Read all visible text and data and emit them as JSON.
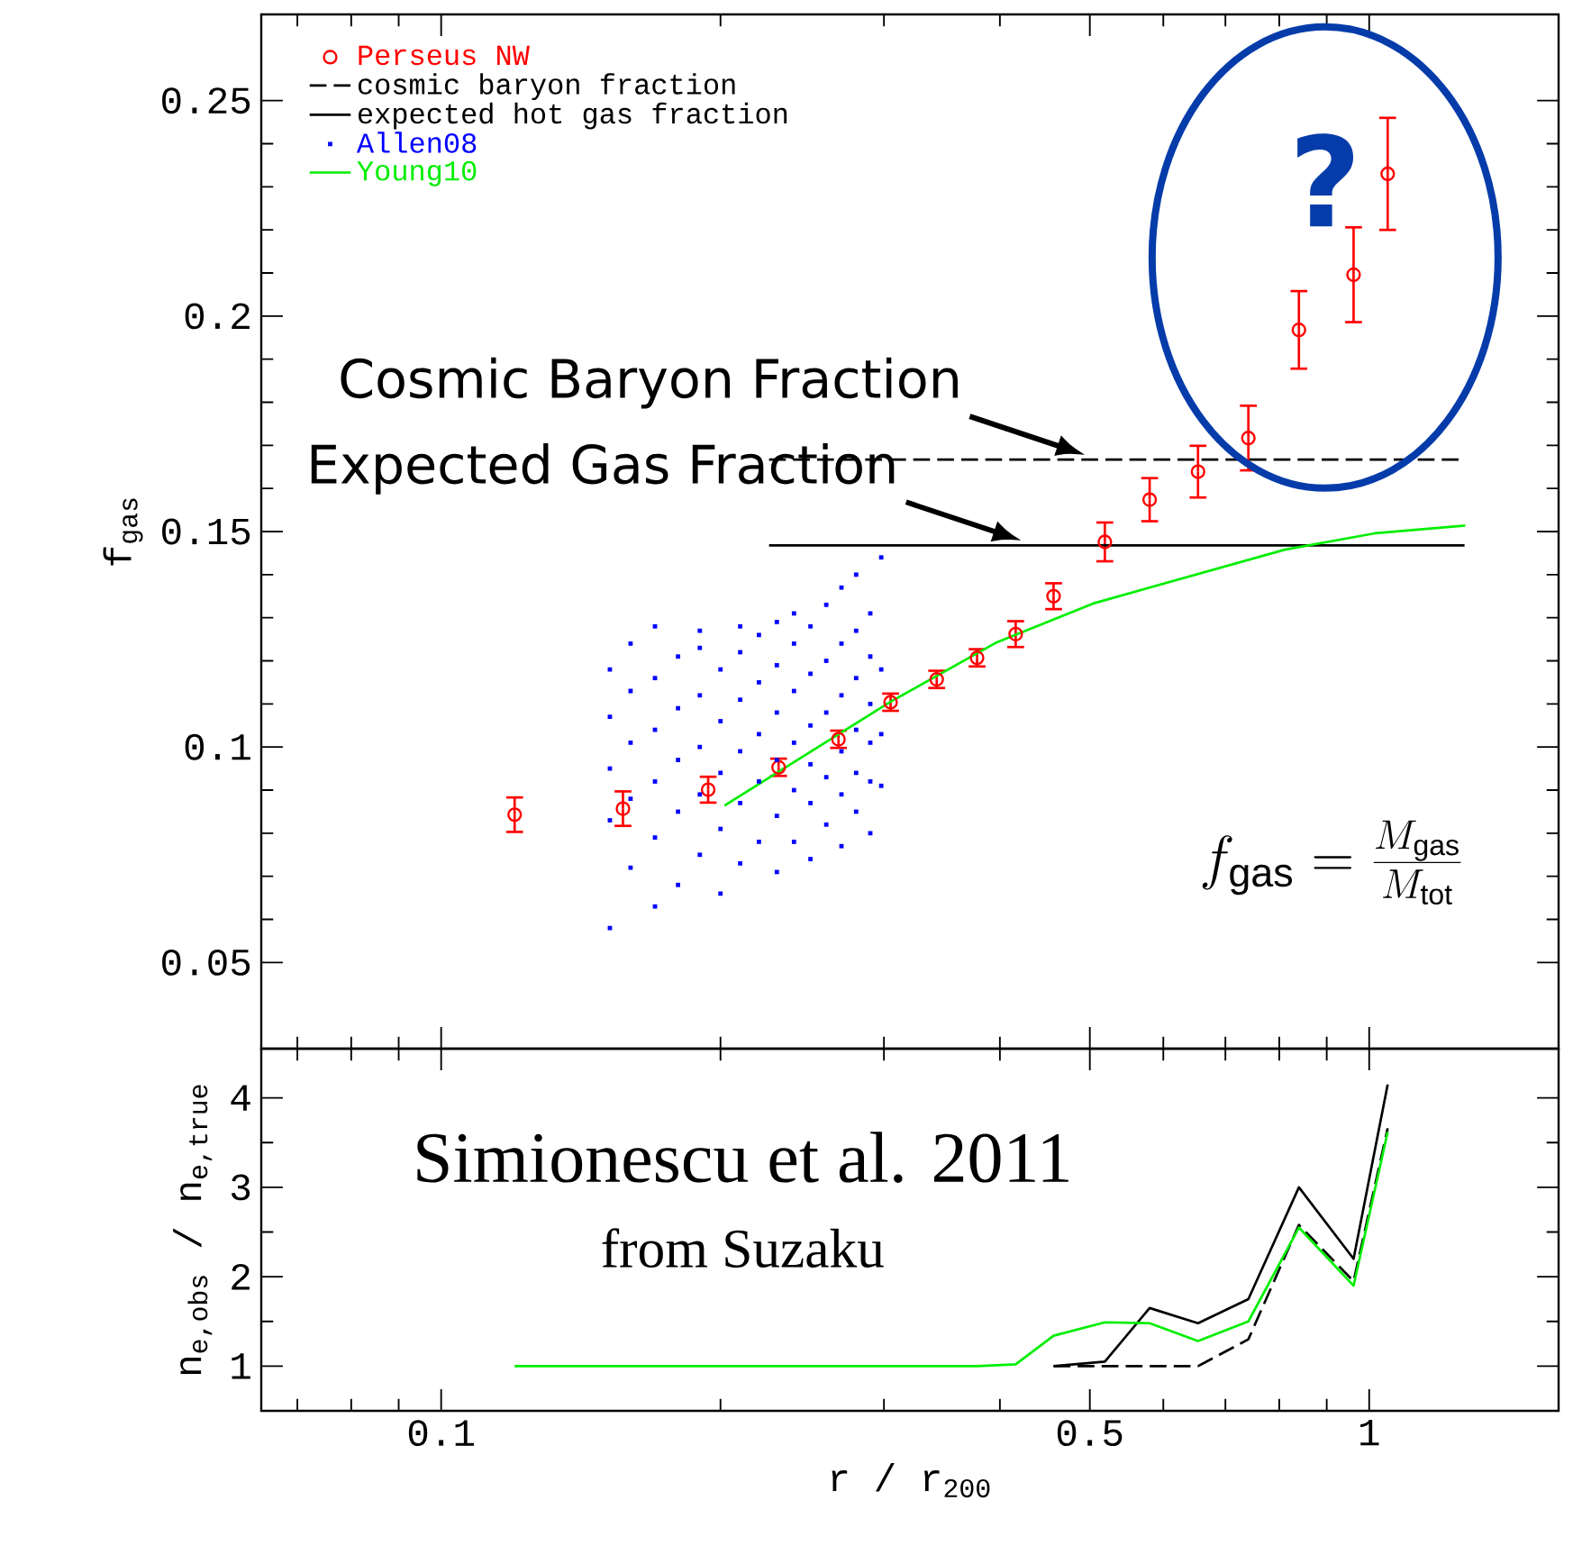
{
  "chart_data": [
    {
      "type": "scatter",
      "ylabel": "f$_{gas}$",
      "log": "x",
      "xlim": [
        0.064,
        1.6
      ],
      "ylim": [
        0.03,
        0.27
      ],
      "xticks": [
        {
          "value": 0.1,
          "label": null
        },
        {
          "value": 0.5,
          "label": null
        },
        {
          "value": 1,
          "label": null
        }
      ],
      "yticks": [
        0.05,
        0.1,
        0.15,
        0.2,
        0.25
      ],
      "tick_labels": "y",
      "legend": "top left",
      "series": [
        {
          "name": "Perseus NW",
          "type": "scatter",
          "marker": "circle",
          "color": "#ff0000",
          "x": [
            0.12,
            0.157,
            0.194,
            0.231,
            0.268,
            0.305,
            0.342,
            0.378,
            0.416,
            0.457,
            0.519,
            0.58,
            0.654,
            0.741,
            0.84,
            0.962,
            1.047
          ],
          "values": [
            0.0843,
            0.0857,
            0.0901,
            0.0953,
            0.1018,
            0.1104,
            0.1157,
            0.1207,
            0.1262,
            0.135,
            0.1476,
            0.1574,
            0.1639,
            0.1717,
            0.1968,
            0.2096,
            0.233
          ],
          "errors": [
            0.004,
            0.004,
            0.003,
            0.002,
            0.002,
            0.002,
            0.002,
            0.002,
            0.003,
            0.003,
            0.0045,
            0.005,
            0.006,
            0.0075,
            0.009,
            0.011,
            0.013
          ]
        },
        {
          "name": "cosmic baryon fraction",
          "type": "line",
          "line_style": "dashed",
          "color": "#000000",
          "x": [
            0.2256,
            1.267
          ],
          "values": [
            0.1667,
            0.1667
          ]
        },
        {
          "name": "expected hot gas fraction",
          "type": "line",
          "line_style": "solid",
          "color": "#000000",
          "x": [
            0.2256,
            1.267
          ],
          "values": [
            0.1468,
            0.1468
          ]
        },
        {
          "name": "Allen08",
          "type": "scatter",
          "marker": "square",
          "color": "#0000ff",
          "x": [
            0.152,
            0.152,
            0.152,
            0.152,
            0.152,
            0.16,
            0.16,
            0.16,
            0.16,
            0.16,
            0.17,
            0.17,
            0.17,
            0.17,
            0.17,
            0.17,
            0.18,
            0.18,
            0.18,
            0.18,
            0.18,
            0.19,
            0.19,
            0.19,
            0.19,
            0.19,
            0.19,
            0.2,
            0.2,
            0.2,
            0.2,
            0.2,
            0.21,
            0.21,
            0.21,
            0.21,
            0.21,
            0.21,
            0.22,
            0.22,
            0.22,
            0.22,
            0.22,
            0.23,
            0.23,
            0.23,
            0.23,
            0.23,
            0.23,
            0.24,
            0.24,
            0.24,
            0.24,
            0.24,
            0.24,
            0.25,
            0.25,
            0.25,
            0.25,
            0.25,
            0.25,
            0.26,
            0.26,
            0.26,
            0.26,
            0.26,
            0.27,
            0.27,
            0.27,
            0.27,
            0.27,
            0.27,
            0.28,
            0.28,
            0.28,
            0.28,
            0.28,
            0.28,
            0.29,
            0.29,
            0.29,
            0.29,
            0.29,
            0.29,
            0.298,
            0.298,
            0.298,
            0.298
          ],
          "values": [
            0.058,
            0.083,
            0.095,
            0.107,
            0.118,
            0.072,
            0.088,
            0.101,
            0.113,
            0.124,
            0.063,
            0.079,
            0.092,
            0.104,
            0.116,
            0.128,
            0.068,
            0.085,
            0.097,
            0.109,
            0.121,
            0.075,
            0.089,
            0.1,
            0.112,
            0.123,
            0.127,
            0.066,
            0.081,
            0.094,
            0.106,
            0.118,
            0.073,
            0.087,
            0.099,
            0.111,
            0.122,
            0.128,
            0.078,
            0.092,
            0.103,
            0.115,
            0.126,
            0.071,
            0.084,
            0.097,
            0.108,
            0.119,
            0.129,
            0.078,
            0.09,
            0.101,
            0.113,
            0.124,
            0.131,
            0.074,
            0.087,
            0.096,
            0.105,
            0.117,
            0.128,
            0.082,
            0.093,
            0.108,
            0.12,
            0.133,
            0.077,
            0.089,
            0.099,
            0.112,
            0.124,
            0.137,
            0.085,
            0.094,
            0.104,
            0.116,
            0.127,
            0.14,
            0.08,
            0.092,
            0.101,
            0.11,
            0.121,
            0.131,
            0.091,
            0.103,
            0.118,
            0.144
          ]
        },
        {
          "name": "Young10",
          "type": "line",
          "line_style": "solid",
          "color": "#00ee00",
          "x": [
            0.202,
            0.305,
            0.397,
            0.504,
            0.811,
            1.015,
            1.269
          ],
          "values": [
            0.0864,
            0.1105,
            0.1243,
            0.1333,
            0.1458,
            0.1496,
            0.1514
          ]
        }
      ],
      "annotations": [
        {
          "text": "Cosmic Baryon Fraction",
          "x": 0.5,
          "y": 0.1667
        },
        {
          "text": "Expected Gas Fraction",
          "x": 0.427,
          "y": 0.1468
        },
        "?",
        "f_{\\mathrm{gas}} = \\frac{M_{\\mathrm{gas}}}{M_{\\mathrm{tot}}}"
      ]
    },
    {
      "type": "line",
      "xlabel": "r / r$_{200}$",
      "ylabel": "n$_{e,obs}$ / n$_{e,true}$",
      "log": "x",
      "xlim": [
        0.064,
        1.6
      ],
      "ylim": [
        0.5,
        4.55
      ],
      "xticks": [
        0.1,
        0.5,
        1
      ],
      "yticks": [
        1,
        2,
        3,
        4
      ],
      "series": [
        {
          "color": "#000000",
          "line_style": "solid",
          "x": [
            0.457,
            0.519,
            0.58,
            0.654,
            0.741,
            0.84,
            0.962,
            1.047
          ],
          "values": [
            1,
            1.05,
            1.65,
            1.48,
            1.75,
            3.0,
            2.2,
            4.15
          ]
        },
        {
          "color": "#000000",
          "line_style": "dashed",
          "x": [
            0.457,
            0.519,
            0.58,
            0.654,
            0.741,
            0.84,
            0.962,
            1.047
          ],
          "values": [
            1,
            1,
            1,
            1,
            1.3,
            2.58,
            1.95,
            3.66
          ]
        },
        {
          "color": "#00ee00",
          "line_style": "solid",
          "x": [
            0.12,
            0.157,
            0.194,
            0.231,
            0.268,
            0.305,
            0.342,
            0.378,
            0.416,
            0.457,
            0.519,
            0.58,
            0.654,
            0.741,
            0.84,
            0.962,
            1.047
          ],
          "values": [
            1,
            1,
            1,
            1,
            1,
            1,
            1,
            1,
            1.02,
            1.34,
            1.49,
            1.48,
            1.28,
            1.5,
            2.55,
            1.9,
            3.62
          ]
        }
      ],
      "annotations": [
        "Simionescu et al. 2011",
        "from Suzaku"
      ]
    }
  ]
}
